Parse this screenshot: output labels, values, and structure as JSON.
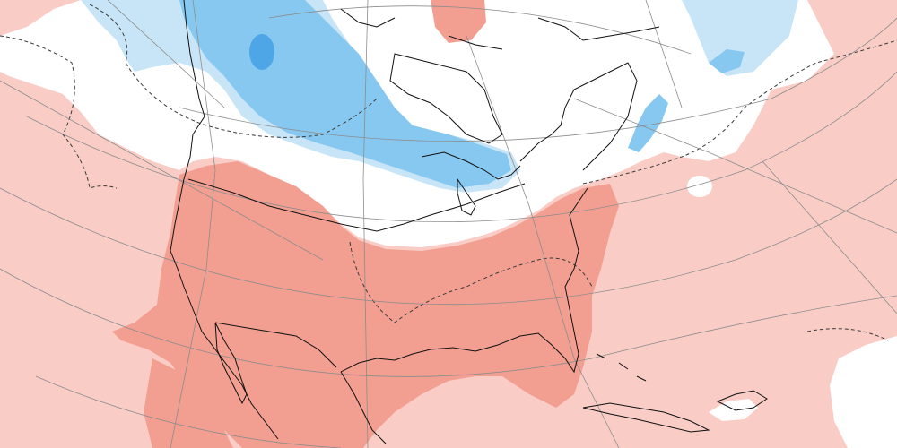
{
  "map": {
    "type": "anomaly-map",
    "projection": "polar-stereographic",
    "region": "North America",
    "colors": {
      "background": "#ffffff",
      "warm_light": "#f9cdc6",
      "warm_strong": "#f29f92",
      "cold_light": "#c8e5f8",
      "cold_mid": "#87c8f0",
      "cold_strong": "#4fa6e6",
      "coastline": "#111111",
      "graticule": "#8c8c8c",
      "zero_contour": "#3a3a3a"
    },
    "legend": []
  }
}
